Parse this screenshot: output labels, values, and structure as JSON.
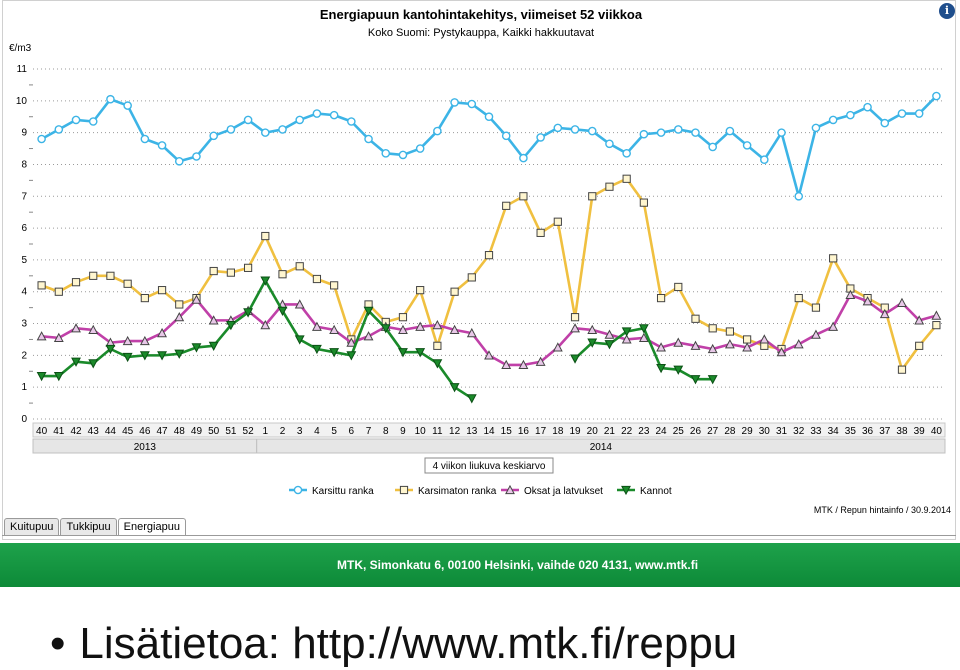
{
  "header": {
    "info_icon": "info-icon"
  },
  "tabs": [
    {
      "label": "Kuitupuu",
      "active": false
    },
    {
      "label": "Tukkipuu",
      "active": false
    },
    {
      "label": "Energiapuu",
      "active": true
    }
  ],
  "banner": {
    "text": "MTK, Simonkatu 6, 00100 Helsinki, vaihde 020 4131, www.mtk.fi",
    "color": "#159a42"
  },
  "footer": {
    "bullet": "•",
    "text": "Lisätietoa: http://www.mtk.fi/reppu"
  },
  "chart_data": {
    "type": "line",
    "title": "Energiapuun kantohintakehitys, viimeiset 52 viikkoa",
    "subtitle": "Koko Suomi: Pystykauppa, Kaikki hakkuutavat",
    "ylabel": "€/m3",
    "ylim": [
      0,
      11
    ],
    "yticks": [
      0,
      1,
      2,
      3,
      4,
      5,
      6,
      7,
      8,
      9,
      10,
      11
    ],
    "grid": "horizontal dashed",
    "x": [
      "40",
      "41",
      "42",
      "43",
      "44",
      "45",
      "46",
      "47",
      "48",
      "49",
      "50",
      "51",
      "52",
      "1",
      "2",
      "3",
      "4",
      "5",
      "6",
      "7",
      "8",
      "9",
      "10",
      "11",
      "12",
      "13",
      "14",
      "15",
      "16",
      "17",
      "18",
      "19",
      "20",
      "21",
      "22",
      "23",
      "24",
      "25",
      "26",
      "27",
      "28",
      "29",
      "30",
      "31",
      "32",
      "33",
      "34",
      "35",
      "36",
      "37",
      "38",
      "39",
      "40"
    ],
    "year_groups": [
      {
        "label": "2013",
        "from": 0,
        "to": 12
      },
      {
        "label": "2014",
        "from": 13,
        "to": 52
      }
    ],
    "legend_title": "4 viikon liukuva keskiarvo",
    "legend_position": "bottom",
    "source": "MTK / Repun hintainfo / 30.9.2014",
    "series": [
      {
        "name": "Karsittu ranka",
        "color": "#3cb4e6",
        "marker": "circle",
        "values": [
          8.8,
          9.1,
          9.4,
          9.35,
          10.05,
          9.85,
          8.8,
          8.6,
          8.1,
          8.25,
          8.9,
          9.1,
          9.4,
          9.0,
          9.1,
          9.4,
          9.6,
          9.55,
          9.35,
          8.8,
          8.35,
          8.3,
          8.5,
          9.05,
          9.95,
          9.9,
          9.5,
          8.9,
          8.2,
          8.85,
          9.15,
          9.1,
          9.05,
          8.65,
          8.35,
          8.95,
          9.0,
          9.1,
          9.0,
          8.55,
          9.05,
          8.6,
          8.15,
          9.0,
          7.0,
          9.15,
          9.4,
          9.55,
          9.8,
          9.3,
          9.6,
          9.6,
          10.15
        ]
      },
      {
        "name": "Karsimaton ranka",
        "color": "#f0c040",
        "marker": "square",
        "values": [
          4.2,
          4.0,
          4.3,
          4.5,
          4.5,
          4.25,
          3.8,
          4.05,
          3.6,
          3.8,
          4.65,
          4.6,
          4.75,
          5.75,
          4.55,
          4.8,
          4.4,
          4.2,
          2.5,
          3.6,
          3.05,
          3.2,
          4.05,
          2.3,
          4.0,
          4.45,
          5.15,
          6.7,
          7.0,
          5.85,
          6.2,
          3.2,
          7.0,
          7.3,
          7.55,
          6.8,
          3.8,
          4.15,
          3.15,
          2.85,
          2.75,
          2.5,
          2.3,
          2.2,
          3.8,
          3.5,
          5.05,
          4.1,
          3.8,
          3.5,
          1.55,
          2.3,
          2.95
        ]
      },
      {
        "name": "Oksat ja latvukset",
        "color": "#c040a8",
        "marker": "triangle",
        "values": [
          2.6,
          2.55,
          2.85,
          2.8,
          2.4,
          2.45,
          2.45,
          2.7,
          3.2,
          3.75,
          3.1,
          3.1,
          3.4,
          2.95,
          3.6,
          3.6,
          2.9,
          2.8,
          2.4,
          2.6,
          2.9,
          2.8,
          2.9,
          2.95,
          2.8,
          2.7,
          2.0,
          1.7,
          1.7,
          1.8,
          2.25,
          2.85,
          2.8,
          2.65,
          2.5,
          2.55,
          2.25,
          2.4,
          2.3,
          2.2,
          2.35,
          2.25,
          2.5,
          2.1,
          2.35,
          2.65,
          2.9,
          3.9,
          3.7,
          3.3,
          3.65,
          3.1,
          3.25
        ]
      },
      {
        "name": "Kannot",
        "color": "#1a8a2a",
        "marker": "triangle-down",
        "values": [
          1.35,
          1.35,
          1.8,
          1.75,
          2.2,
          1.95,
          2.0,
          2.0,
          2.05,
          2.25,
          2.3,
          2.95,
          3.35,
          4.35,
          3.4,
          2.5,
          2.2,
          2.1,
          2.0,
          3.4,
          2.85,
          2.1,
          2.1,
          1.75,
          1.0,
          0.65,
          null,
          null,
          null,
          null,
          null,
          1.9,
          2.4,
          2.35,
          2.75,
          2.85,
          1.6,
          1.55,
          1.25,
          1.25,
          null,
          null,
          null,
          null,
          null,
          null,
          null,
          null,
          null,
          null,
          null,
          null,
          null
        ]
      }
    ]
  }
}
